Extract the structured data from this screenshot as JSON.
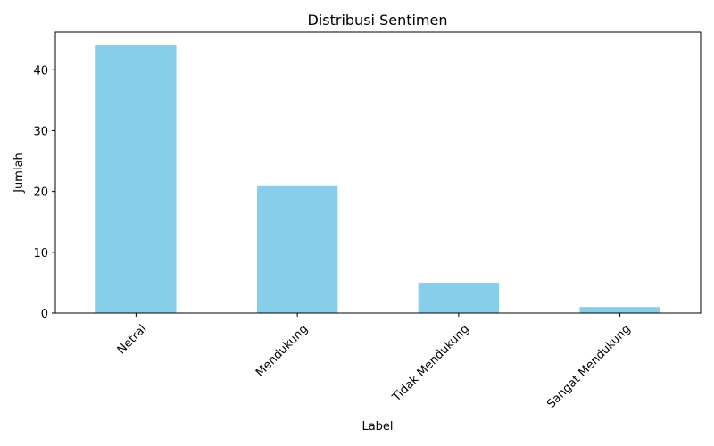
{
  "chart_data": {
    "type": "bar",
    "title": "Distribusi Sentimen",
    "xlabel": "Label",
    "ylabel": "Jumlah",
    "categories": [
      "Netral",
      "Mendukung",
      "Tidak Mendukung",
      "Sangat Mendukung"
    ],
    "values": [
      44,
      21,
      5,
      1
    ],
    "ylim": [
      0,
      46.2
    ],
    "yticks": [
      0,
      10,
      20,
      30,
      40
    ],
    "grid": false,
    "bar_color": "#87CEEB"
  }
}
